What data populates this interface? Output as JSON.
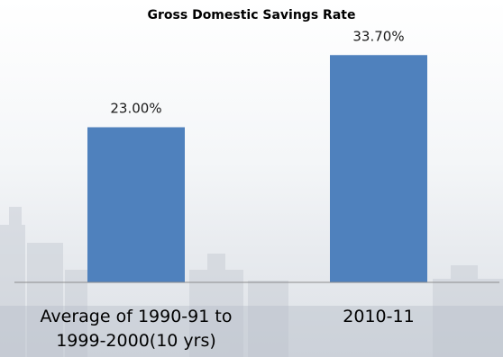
{
  "chart_data": {
    "type": "bar",
    "title": "Gross Domestic Savings Rate",
    "xlabel": "",
    "ylabel": "",
    "categories": [
      "Average of 1990-91 to 1999-2000(10 yrs)",
      "2010-11"
    ],
    "category_lines": [
      [
        "Average of 1990-91 to",
        "1999-2000(10 yrs)"
      ],
      [
        "2010-11"
      ]
    ],
    "values": [
      23.0,
      33.7
    ],
    "data_labels": [
      "23.00%",
      "33.70%"
    ],
    "ylim": [
      0,
      40
    ],
    "grid": false,
    "legend": "none",
    "bar_color": "#4f81bd"
  }
}
